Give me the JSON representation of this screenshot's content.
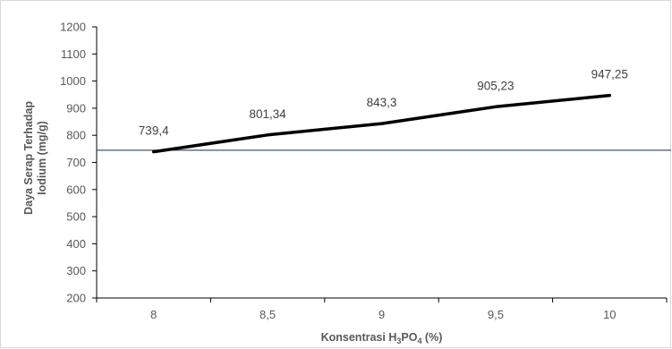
{
  "chart_data": {
    "type": "line",
    "title": "",
    "xlabel": {
      "main": "Konsentrasi  H",
      "sub1": "3",
      "mid": "PO",
      "sub2": "4",
      "tail": " (%)"
    },
    "ylabel": [
      "Daya Serap Terhadap",
      "Iodium (mg/g)"
    ],
    "categories": [
      "8",
      "8,5",
      "9",
      "9,5",
      "10"
    ],
    "x": [
      8,
      8.5,
      9,
      9.5,
      10
    ],
    "series": [
      {
        "values": [
          739.4,
          801.34,
          843.3,
          905.23,
          947.25
        ],
        "labels": [
          "739,4",
          "801,34",
          "843,3",
          "905,23",
          "947,25"
        ],
        "color": "#000000"
      }
    ],
    "reference_line": {
      "value": 745,
      "color": "#44546a"
    },
    "ylim": [
      200,
      1200
    ],
    "yticks": [
      200,
      300,
      400,
      500,
      600,
      700,
      800,
      900,
      1000,
      1100,
      1200
    ],
    "ytick_labels": [
      "200",
      "300",
      "400",
      "500",
      "600",
      "700",
      "800",
      "900",
      "1000",
      "1100",
      "1200"
    ],
    "grid": false,
    "legend": "none",
    "axis_color": "#000000",
    "tick_color": "#595959"
  }
}
